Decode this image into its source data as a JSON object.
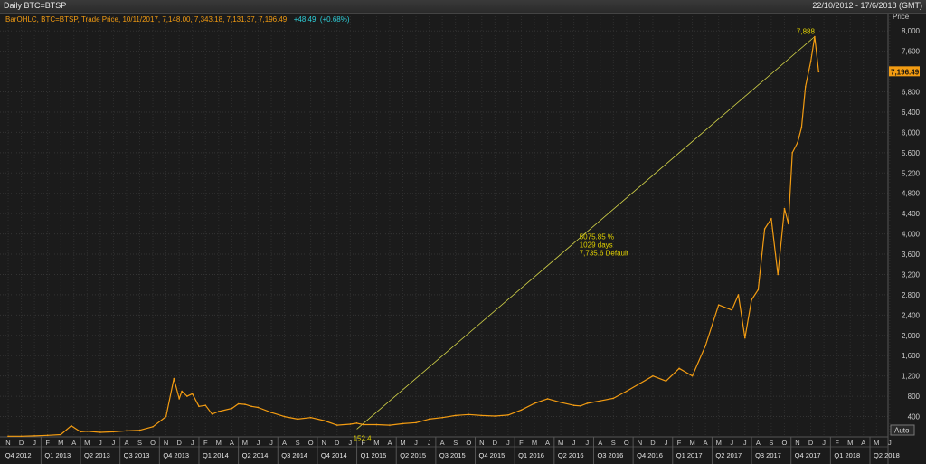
{
  "window": {
    "title": "Daily BTC=BTSP",
    "range": "22/10/2012 - 17/6/2018 (GMT)"
  },
  "legend": {
    "series": "BarOHLC, BTC=BTSP, Trade Price, 10/11/2017, 7,148.00, 7,343.18, 7,131.37, 7,196.49,",
    "change": "+48.49, (+0.68%)"
  },
  "axis": {
    "price_label": "Price",
    "auto_label": "Auto",
    "last_price": "7,196.49"
  },
  "annotations": {
    "low": "152.4",
    "high": "7,888",
    "line1": "5075.85 %",
    "line2": "1029 days",
    "line3": "7,735.6 Default"
  },
  "colors": {
    "background": "#1b1b1b",
    "grid": "#3a3a3a",
    "price_line": "#f39c12",
    "trend_line": "#d4d448",
    "annotation_text": "#e0d000",
    "legend_series": "#f39c12",
    "legend_change": "#2ecfd9"
  },
  "chart_data": {
    "type": "line",
    "title": "",
    "xlabel": "",
    "ylabel": "Price",
    "ylim": [
      0,
      8200
    ],
    "yticks": [
      400,
      800,
      1200,
      1600,
      2000,
      2400,
      2800,
      3200,
      3600,
      4000,
      4400,
      4800,
      5200,
      5600,
      6000,
      6400,
      6800,
      7200,
      7600,
      8000
    ],
    "yticklabels": [
      "400",
      "800",
      "1,200",
      "1,600",
      "2,000",
      "2,400",
      "2,800",
      "3,200",
      "3,600",
      "4,000",
      "4,400",
      "4,800",
      "5,200",
      "5,600",
      "6,000",
      "6,400",
      "6,800",
      "7,200",
      "7,600",
      "8,000"
    ],
    "grid": true,
    "months": [
      "N",
      "D",
      "J",
      "F",
      "M",
      "A",
      "M",
      "J",
      "J",
      "A",
      "S",
      "O",
      "N",
      "D",
      "J",
      "F",
      "M",
      "A",
      "M",
      "J",
      "J",
      "A",
      "S",
      "O",
      "N",
      "D",
      "J",
      "F",
      "M",
      "A",
      "M",
      "J",
      "J",
      "A",
      "S",
      "O",
      "N",
      "D",
      "J",
      "F",
      "M",
      "A",
      "M",
      "J",
      "J",
      "A",
      "S",
      "O",
      "N",
      "D",
      "J",
      "F",
      "M",
      "A",
      "M",
      "J",
      "J",
      "A",
      "S",
      "O",
      "N",
      "D",
      "J",
      "F",
      "M",
      "A",
      "M",
      "J"
    ],
    "quarters": [
      "Q4 2012",
      "Q1 2013",
      "Q2 2013",
      "Q3 2013",
      "Q4 2013",
      "Q1 2014",
      "Q2 2014",
      "Q3 2014",
      "Q4 2014",
      "Q1 2015",
      "Q2 2015",
      "Q3 2015",
      "Q4 2015",
      "Q1 2016",
      "Q2 2016",
      "Q3 2016",
      "Q4 2016",
      "Q1 2017",
      "Q2 2017",
      "Q3 2017",
      "Q4 2017",
      "Q1 2018",
      "Q2 2018"
    ],
    "series": [
      {
        "name": "BTC=BTSP",
        "x_months": [
          0,
          1,
          2,
          3,
          4,
          4.8,
          5.5,
          6,
          7,
          8,
          9,
          10,
          11,
          12,
          12.6,
          13,
          13.2,
          13.6,
          14,
          14.5,
          15,
          15.5,
          16,
          17,
          17.5,
          18,
          18.5,
          19,
          20,
          21,
          22,
          23,
          24,
          25,
          26,
          26.5,
          27,
          28,
          29,
          30,
          31,
          32,
          33,
          34,
          35,
          36,
          37,
          38,
          39,
          40,
          41,
          42,
          43,
          43.5,
          44,
          45,
          46,
          47,
          48,
          49,
          50,
          51,
          52,
          53,
          54,
          55,
          55.5,
          56,
          56.5,
          57,
          57.5,
          58,
          58.5,
          59,
          59.3,
          59.6,
          60,
          60.3,
          60.6,
          61,
          61.3,
          61.6
        ],
        "values": [
          12,
          13,
          20,
          30,
          45,
          220,
          100,
          110,
          90,
          100,
          120,
          130,
          200,
          400,
          1150,
          750,
          900,
          800,
          850,
          600,
          620,
          450,
          500,
          560,
          650,
          640,
          600,
          580,
          480,
          400,
          350,
          380,
          320,
          230,
          250,
          270,
          240,
          240,
          230,
          260,
          280,
          350,
          380,
          420,
          440,
          420,
          410,
          430,
          530,
          660,
          750,
          680,
          620,
          610,
          660,
          710,
          760,
          900,
          1050,
          1200,
          1100,
          1350,
          1200,
          1800,
          2600,
          2500,
          2800,
          1950,
          2700,
          2900,
          4100,
          4300,
          3200,
          4500,
          4200,
          5600,
          5800,
          6100,
          6900,
          7400,
          7888,
          7196
        ]
      }
    ],
    "trendline": {
      "from_month": 26.5,
      "from_value": 152.4,
      "to_month": 61.3,
      "to_value": 7888
    }
  }
}
